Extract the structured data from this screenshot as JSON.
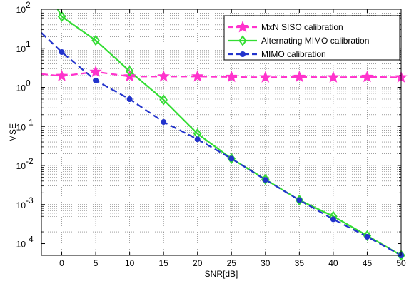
{
  "chart_data": {
    "type": "line",
    "xlabel": "SNR[dB]",
    "ylabel": "MSE",
    "xlim": [
      -3,
      50
    ],
    "ylim": [
      5e-05,
      100
    ],
    "yscale": "log",
    "grid": true,
    "legend_position": "top-right",
    "x_ticks": [
      0,
      5,
      10,
      15,
      20,
      25,
      30,
      35,
      40,
      45,
      50
    ],
    "x_tick_labels": [
      "0",
      "5",
      "10",
      "15",
      "20",
      "25",
      "30",
      "35",
      "40",
      "45",
      "50"
    ],
    "y_tick_values": [
      0.0001,
      0.001,
      0.01,
      0.1,
      1,
      10,
      100
    ],
    "y_tick_exponents": [
      "-4",
      "-3",
      "-2",
      "-1",
      "0",
      "1",
      "2"
    ],
    "y_tick_base": "10",
    "series": [
      {
        "name": "MxN SISO calibration",
        "color": "#ff33cc",
        "dash": "dashed",
        "marker": "star",
        "line_x": [
          -3,
          0,
          5,
          10,
          15,
          20,
          25,
          30,
          35,
          40,
          45,
          50
        ],
        "line_y": [
          2.2,
          1.95,
          2.5,
          1.9,
          1.9,
          1.9,
          1.85,
          1.8,
          1.85,
          1.8,
          1.85,
          1.8
        ],
        "marker_x": [
          0,
          5,
          10,
          15,
          20,
          25,
          30,
          35,
          40,
          45,
          50
        ],
        "marker_y": [
          1.95,
          2.5,
          1.9,
          1.9,
          1.9,
          1.85,
          1.8,
          1.85,
          1.8,
          1.85,
          1.8
        ]
      },
      {
        "name": "Alternating MIMO calibration",
        "color": "#33dd33",
        "dash": "solid",
        "marker": "diamond",
        "line_x": [
          -0.6,
          0,
          5,
          10,
          15,
          20,
          25,
          30,
          35,
          40,
          45,
          50
        ],
        "line_y": [
          100,
          65,
          16,
          2.6,
          0.48,
          0.065,
          0.015,
          0.0044,
          0.0013,
          0.0005,
          0.00016,
          5e-05
        ],
        "marker_x": [
          0,
          5,
          10,
          15,
          20,
          25,
          30,
          35,
          40,
          45,
          50
        ],
        "marker_y": [
          65,
          16,
          2.6,
          0.48,
          0.065,
          0.015,
          0.0044,
          0.0013,
          0.0005,
          0.00016,
          5e-05
        ]
      },
      {
        "name": "MIMO calibration",
        "color": "#2233cc",
        "dash": "dashed",
        "marker": "circle",
        "line_x": [
          -3,
          0,
          5,
          10,
          15,
          20,
          25,
          30,
          35,
          40,
          45,
          50
        ],
        "line_y": [
          25,
          8,
          1.5,
          0.5,
          0.13,
          0.047,
          0.015,
          0.0043,
          0.0013,
          0.00042,
          0.00015,
          5e-05
        ],
        "marker_x": [
          0,
          5,
          10,
          15,
          20,
          25,
          30,
          35,
          40,
          45,
          50
        ],
        "marker_y": [
          8,
          1.5,
          0.5,
          0.13,
          0.047,
          0.015,
          0.0043,
          0.0013,
          0.00042,
          0.00015,
          5e-05
        ]
      }
    ]
  }
}
